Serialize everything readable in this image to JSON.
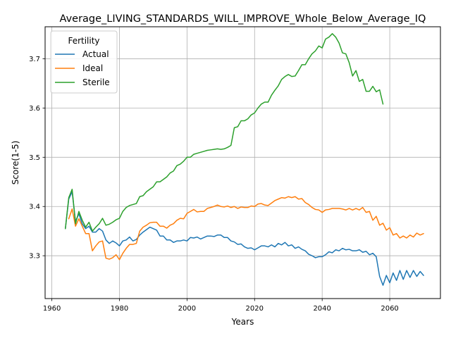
{
  "chart_data": {
    "type": "line",
    "title": "Average_LIVING_STANDARDS_WILL_IMPROVE_Whole_Below_Average_IQ",
    "xlabel": "Years",
    "ylabel": "Score(1-5)",
    "xlim": [
      1958,
      2075
    ],
    "ylim": [
      3.213,
      3.765
    ],
    "xticks": [
      1960,
      1980,
      2000,
      2020,
      2040,
      2060
    ],
    "yticks": [
      3.3,
      3.4,
      3.5,
      3.6,
      3.7
    ],
    "xtick_labels": [
      "1960",
      "1980",
      "2000",
      "2020",
      "2040",
      "2060"
    ],
    "ytick_labels": [
      "3.3",
      "3.4",
      "3.5",
      "3.6",
      "3.7"
    ],
    "grid": true,
    "legend": {
      "title": "Fertility",
      "position": "upper-left"
    },
    "series": [
      {
        "name": "Actual",
        "color": "#1f77b4",
        "x": [
          1964,
          1965,
          1966,
          1967,
          1968,
          1969,
          1970,
          1971,
          1972,
          1973,
          1974,
          1975,
          1976,
          1977,
          1978,
          1979,
          1980,
          1981,
          1982,
          1983,
          1984,
          1985,
          1986,
          1987,
          1988,
          1989,
          1990,
          1991,
          1992,
          1993,
          1994,
          1995,
          1996,
          1997,
          1998,
          1999,
          2000,
          2001,
          2002,
          2003,
          2004,
          2005,
          2006,
          2007,
          2008,
          2009,
          2010,
          2011,
          2012,
          2013,
          2014,
          2015,
          2016,
          2017,
          2018,
          2019,
          2020,
          2021,
          2022,
          2023,
          2024,
          2025,
          2026,
          2027,
          2028,
          2029,
          2030,
          2031,
          2032,
          2033,
          2034,
          2035,
          2036,
          2037,
          2038,
          2039,
          2040,
          2041,
          2042,
          2043,
          2044,
          2045,
          2046,
          2047,
          2048,
          2049,
          2050,
          2051,
          2052,
          2053,
          2054,
          2055,
          2056,
          2057,
          2058,
          2059,
          2060,
          2061,
          2062,
          2063,
          2064,
          2065,
          2066,
          2067,
          2068,
          2069,
          2070
        ],
        "values": [
          3.355,
          3.415,
          3.43,
          3.37,
          3.385,
          3.365,
          3.355,
          3.36,
          3.348,
          3.348,
          3.355,
          3.35,
          3.332,
          3.325,
          3.33,
          3.326,
          3.32,
          3.33,
          3.332,
          3.338,
          3.33,
          3.333,
          3.342,
          3.348,
          3.353,
          3.358,
          3.355,
          3.352,
          3.34,
          3.34,
          3.332,
          3.332,
          3.327,
          3.33,
          3.33,
          3.332,
          3.33,
          3.337,
          3.336,
          3.338,
          3.334,
          3.337,
          3.34,
          3.34,
          3.339,
          3.342,
          3.342,
          3.337,
          3.337,
          3.33,
          3.328,
          3.323,
          3.324,
          3.318,
          3.315,
          3.316,
          3.312,
          3.316,
          3.32,
          3.32,
          3.318,
          3.322,
          3.318,
          3.325,
          3.322,
          3.327,
          3.32,
          3.322,
          3.315,
          3.318,
          3.313,
          3.31,
          3.303,
          3.3,
          3.296,
          3.298,
          3.298,
          3.302,
          3.308,
          3.306,
          3.312,
          3.31,
          3.315,
          3.312,
          3.313,
          3.31,
          3.31,
          3.312,
          3.307,
          3.309,
          3.302,
          3.305,
          3.298,
          3.258,
          3.24,
          3.26,
          3.245,
          3.265,
          3.25,
          3.27,
          3.252,
          3.27,
          3.256,
          3.27,
          3.258,
          3.268,
          3.26
        ]
      },
      {
        "name": "Ideal",
        "color": "#ff7f0e",
        "x": [
          1965,
          1966,
          1967,
          1968,
          1969,
          1970,
          1971,
          1972,
          1973,
          1974,
          1975,
          1976,
          1977,
          1978,
          1979,
          1980,
          1981,
          1982,
          1983,
          1984,
          1985,
          1986,
          1987,
          1988,
          1989,
          1990,
          1991,
          1992,
          1993,
          1994,
          1995,
          1996,
          1997,
          1998,
          1999,
          2000,
          2001,
          2002,
          2003,
          2004,
          2005,
          2006,
          2007,
          2008,
          2009,
          2010,
          2011,
          2012,
          2013,
          2014,
          2015,
          2016,
          2017,
          2018,
          2019,
          2020,
          2021,
          2022,
          2023,
          2024,
          2025,
          2026,
          2027,
          2028,
          2029,
          2030,
          2031,
          2032,
          2033,
          2034,
          2035,
          2036,
          2037,
          2038,
          2039,
          2040,
          2041,
          2042,
          2043,
          2044,
          2045,
          2046,
          2047,
          2048,
          2049,
          2050,
          2051,
          2052,
          2053,
          2054,
          2055,
          2056,
          2057,
          2058,
          2059,
          2060,
          2061,
          2062,
          2063,
          2064,
          2065,
          2066,
          2067,
          2068,
          2069,
          2070
        ],
        "values": [
          3.375,
          3.395,
          3.36,
          3.375,
          3.36,
          3.345,
          3.345,
          3.31,
          3.32,
          3.328,
          3.33,
          3.295,
          3.293,
          3.296,
          3.302,
          3.292,
          3.305,
          3.315,
          3.323,
          3.323,
          3.325,
          3.35,
          3.358,
          3.362,
          3.367,
          3.368,
          3.368,
          3.36,
          3.36,
          3.356,
          3.362,
          3.365,
          3.372,
          3.376,
          3.375,
          3.386,
          3.39,
          3.394,
          3.389,
          3.39,
          3.39,
          3.396,
          3.398,
          3.4,
          3.403,
          3.4,
          3.399,
          3.401,
          3.398,
          3.4,
          3.396,
          3.399,
          3.398,
          3.398,
          3.401,
          3.4,
          3.405,
          3.406,
          3.403,
          3.402,
          3.407,
          3.412,
          3.415,
          3.418,
          3.417,
          3.42,
          3.418,
          3.42,
          3.415,
          3.416,
          3.408,
          3.404,
          3.398,
          3.394,
          3.393,
          3.388,
          3.393,
          3.394,
          3.396,
          3.396,
          3.396,
          3.395,
          3.393,
          3.396,
          3.393,
          3.396,
          3.393,
          3.398,
          3.388,
          3.39,
          3.372,
          3.38,
          3.362,
          3.366,
          3.352,
          3.357,
          3.342,
          3.345,
          3.336,
          3.34,
          3.336,
          3.342,
          3.338,
          3.346,
          3.342,
          3.345
        ]
      },
      {
        "name": "Sterile",
        "color": "#2ca02c",
        "x": [
          1964,
          1965,
          1966,
          1967,
          1968,
          1969,
          1970,
          1971,
          1972,
          1973,
          1974,
          1975,
          1976,
          1977,
          1978,
          1979,
          1980,
          1981,
          1982,
          1983,
          1984,
          1985,
          1986,
          1987,
          1988,
          1989,
          1990,
          1991,
          1992,
          1993,
          1994,
          1995,
          1996,
          1997,
          1998,
          1999,
          2000,
          2001,
          2002,
          2003,
          2004,
          2005,
          2006,
          2007,
          2008,
          2009,
          2010,
          2011,
          2012,
          2013,
          2014,
          2015,
          2016,
          2017,
          2018,
          2019,
          2020,
          2021,
          2022,
          2023,
          2024,
          2025,
          2026,
          2027,
          2028,
          2029,
          2030,
          2031,
          2032,
          2033,
          2034,
          2035,
          2036,
          2037,
          2038,
          2039,
          2040,
          2041,
          2042,
          2043,
          2044,
          2045,
          2046,
          2047,
          2048,
          2049,
          2050,
          2051,
          2052,
          2053,
          2054,
          2055,
          2056,
          2057,
          2058
        ],
        "values": [
          3.355,
          3.418,
          3.435,
          3.365,
          3.39,
          3.372,
          3.358,
          3.368,
          3.35,
          3.358,
          3.365,
          3.376,
          3.362,
          3.364,
          3.368,
          3.373,
          3.376,
          3.39,
          3.398,
          3.402,
          3.404,
          3.406,
          3.42,
          3.422,
          3.43,
          3.435,
          3.44,
          3.45,
          3.45,
          3.455,
          3.46,
          3.468,
          3.472,
          3.483,
          3.486,
          3.492,
          3.5,
          3.5,
          3.506,
          3.508,
          3.51,
          3.512,
          3.514,
          3.515,
          3.516,
          3.517,
          3.516,
          3.517,
          3.52,
          3.524,
          3.56,
          3.562,
          3.574,
          3.574,
          3.578,
          3.586,
          3.59,
          3.6,
          3.608,
          3.612,
          3.612,
          3.626,
          3.636,
          3.645,
          3.658,
          3.664,
          3.668,
          3.664,
          3.665,
          3.676,
          3.688,
          3.688,
          3.7,
          3.71,
          3.716,
          3.726,
          3.722,
          3.74,
          3.744,
          3.751,
          3.744,
          3.732,
          3.712,
          3.71,
          3.692,
          3.665,
          3.676,
          3.654,
          3.658,
          3.634,
          3.634,
          3.644,
          3.633,
          3.637,
          3.608
        ]
      }
    ]
  }
}
